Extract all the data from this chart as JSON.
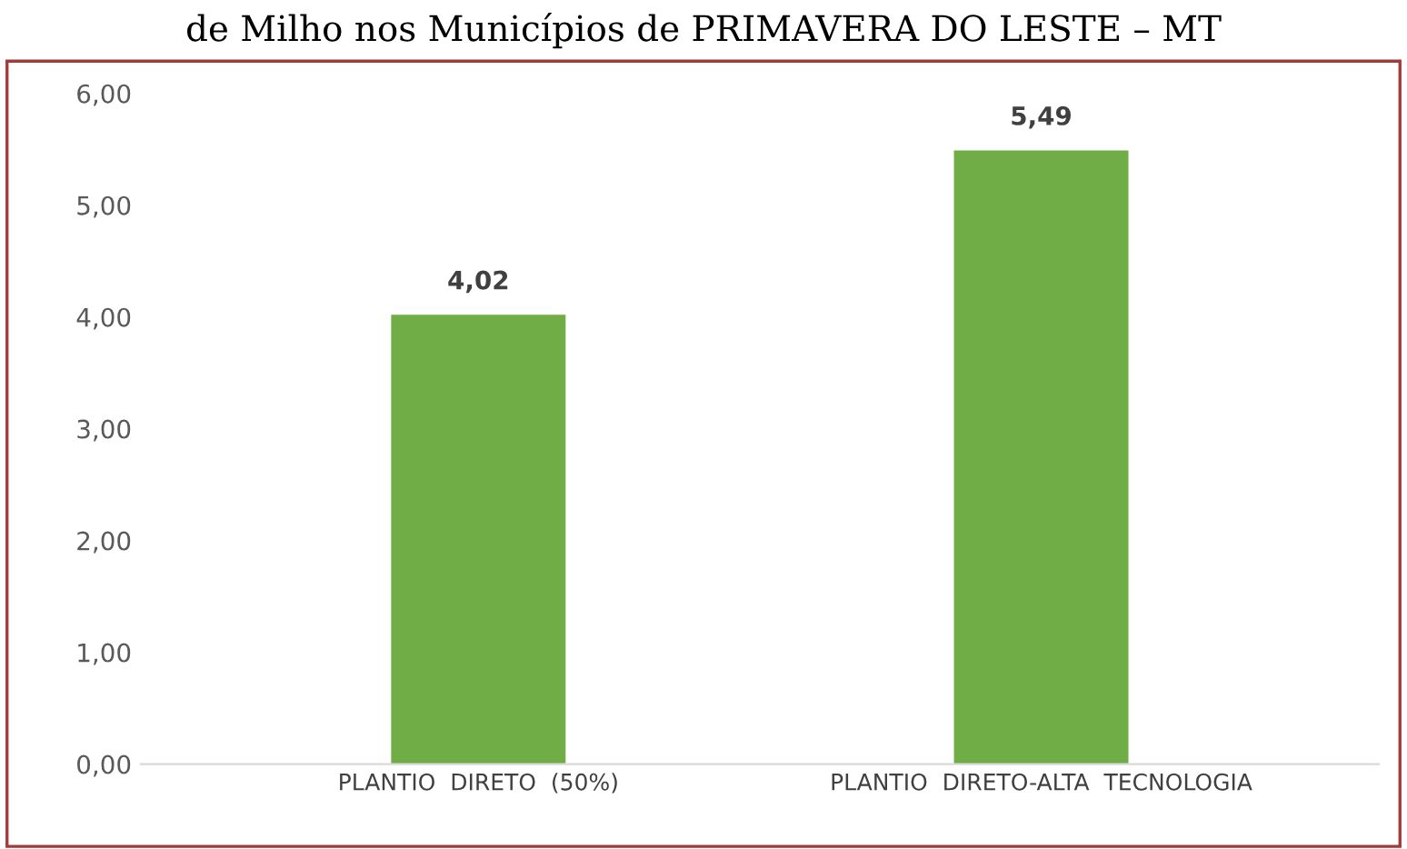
{
  "chart_data": {
    "type": "bar",
    "title": "de Milho nos Municípios de PRIMAVERA DO LESTE – MT",
    "categories": [
      "PLANTIO  DIRETO  (50%)",
      "PLANTIO  DIRETO-ALTA  TECNOLOGIA"
    ],
    "values": [
      4.02,
      5.49
    ],
    "color": "#70ad47",
    "value_labels": [
      "4,02",
      "5,49"
    ],
    "ylim": [
      0,
      6
    ],
    "yticks": [
      {
        "value": 0,
        "label": "0,00"
      },
      {
        "value": 1,
        "label": "1,00"
      },
      {
        "value": 2,
        "label": "2,00"
      },
      {
        "value": 3,
        "label": "3,00"
      },
      {
        "value": 4,
        "label": "4,00"
      },
      {
        "value": 5,
        "label": "5,00"
      },
      {
        "value": 6,
        "label": "6,00"
      }
    ],
    "grid": false
  }
}
